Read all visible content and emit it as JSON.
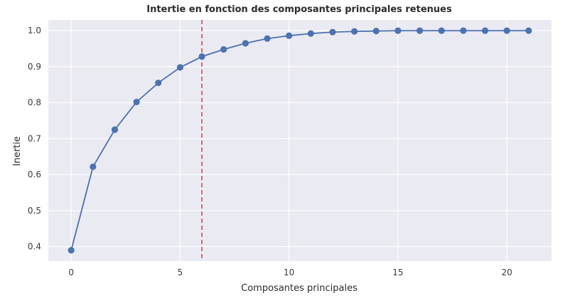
{
  "chart_data": {
    "type": "line",
    "title": "Intertie en fonction des composantes principales retenues",
    "xlabel": "Composantes principales",
    "ylabel": "Inertie",
    "x": [
      0,
      1,
      2,
      3,
      4,
      5,
      6,
      7,
      8,
      9,
      10,
      11,
      12,
      13,
      14,
      15,
      16,
      17,
      18,
      19,
      20,
      21
    ],
    "series": [
      {
        "values": [
          0.39,
          0.622,
          0.725,
          0.802,
          0.855,
          0.898,
          0.928,
          0.948,
          0.965,
          0.978,
          0.986,
          0.992,
          0.996,
          0.998,
          0.999,
          1.0,
          1.0,
          1.0,
          1.0,
          1.0,
          1.0,
          1.0
        ]
      }
    ],
    "xlim": [
      -1.05,
      22.05
    ],
    "ylim": [
      0.36,
      1.03
    ],
    "xticks": [
      0,
      5,
      10,
      15,
      20
    ],
    "xtick_labels": [
      "0",
      "5",
      "10",
      "15",
      "20"
    ],
    "yticks": [
      0.4,
      0.5,
      0.6,
      0.7,
      0.8,
      0.9,
      1.0
    ],
    "ytick_labels": [
      "0.4",
      "0.5",
      "0.6",
      "0.7",
      "0.8",
      "0.9",
      "1.0"
    ],
    "vline": {
      "x": 6,
      "color": "#c44e52",
      "style": "dashed"
    },
    "grid": true,
    "colors": {
      "line": "#4c72b0",
      "background": "#eaeaf2",
      "grid": "#ffffff"
    }
  }
}
